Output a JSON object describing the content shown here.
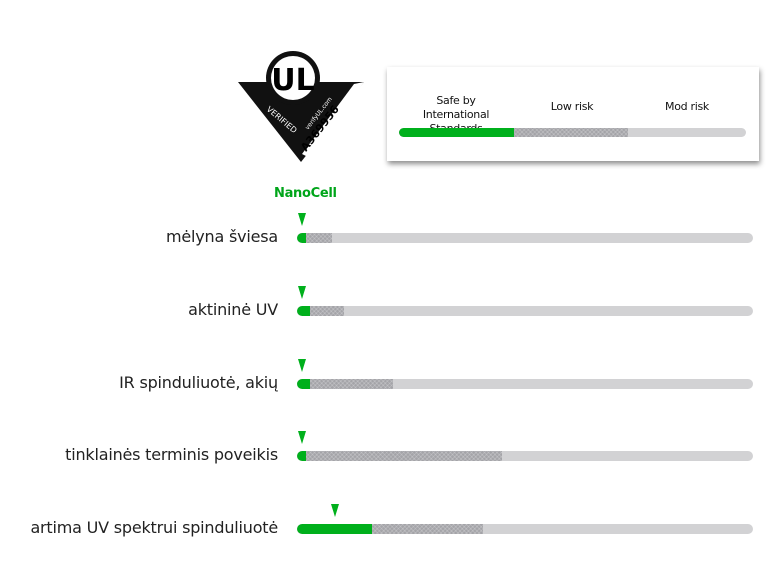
{
  "logo": {
    "text": "UL VERIFIED verifyUL.com A369956"
  },
  "legend": {
    "labels": [
      "Safe by\nInternational Standards",
      "Low risk",
      "Mod risk"
    ],
    "bounds": [
      33,
      66,
      100
    ]
  },
  "colors": {
    "safe": "#00b01c",
    "low": "#a4a4a8",
    "mod": "#d2d2d4",
    "brand": "#00a51a"
  },
  "chart_data": {
    "type": "bar",
    "marker_label": "NanoCell",
    "scale": [
      0,
      100
    ],
    "categories": [
      "mėlyna šviesa",
      "aktininė UV",
      "IR spinduliuotė, akių",
      "tinklainės terminis poveikis",
      "artima UV spektrui spinduliuotė"
    ],
    "safe_limit": [
      2,
      2.8,
      2.8,
      2,
      16.4
    ],
    "low_risk_limit": [
      7.7,
      10.3,
      21,
      45,
      40.8
    ],
    "nanocell_value": [
      1,
      1,
      1,
      1,
      8.3
    ]
  }
}
